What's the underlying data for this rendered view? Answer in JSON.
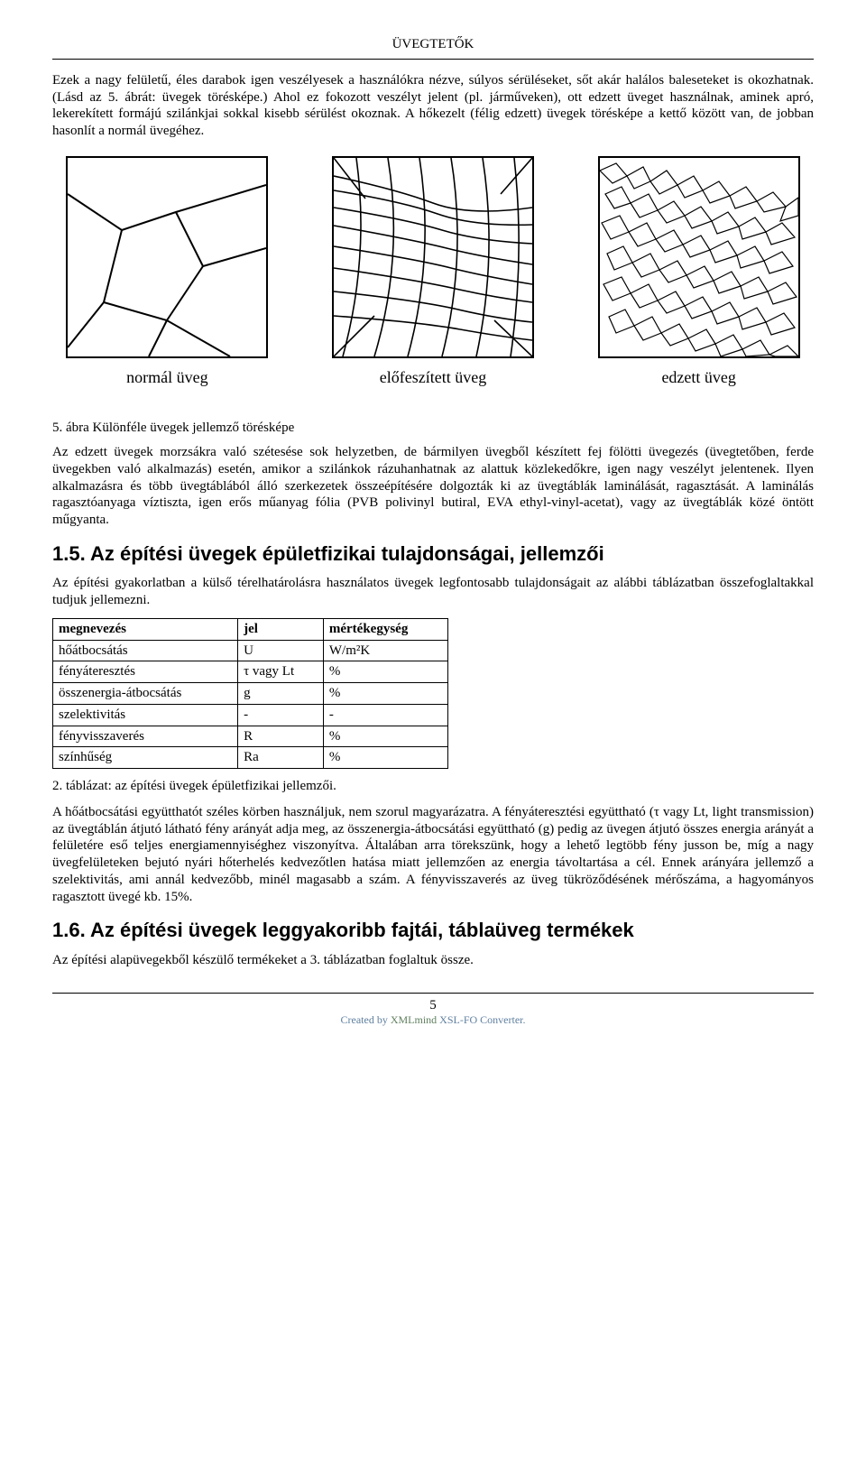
{
  "header": {
    "title": "ÜVEGTETŐK"
  },
  "p1": "Ezek a nagy felületű, éles darabok igen veszélyesek a használókra nézve, súlyos sérüléseket, sőt akár halálos baleseteket is okozhatnak. (Lásd az 5. ábrát: üvegek törésképe.) Ahol ez fokozott veszélyt jelent (pl. járműveken), ott edzett üveget használnak, aminek apró, lekerekített formájú szilánkjai sokkal kisebb sérülést okoznak. A hőkezelt (félig edzett) üvegek törésképe a kettő között van, de jobban hasonlít a normál üvegéhez.",
  "figures": {
    "labels": [
      "normál üveg",
      "előfeszített üveg",
      "edzett üveg"
    ],
    "box_size": 220,
    "stroke": "#000000",
    "bg": "#ffffff"
  },
  "caption": "5. ábra Különféle üvegek jellemző törésképe",
  "p2": "Az edzett üvegek morzsákra való szétesése sok helyzetben, de bármilyen üvegből készített fej fölötti üvegezés (üvegtetőben, ferde üvegekben való alkalmazás) esetén, amikor a szilánkok rázuhanhatnak az alattuk közlekedőkre, igen nagy veszélyt jelentenek. Ilyen alkalmazásra és több üvegtáblából álló szerkezetek összeépítésére dolgozták ki az üvegtáblák laminálását, ragasztását. A laminálás ragasztóanyaga víztiszta, igen erős műanyag fólia (PVB polivinyl butiral, EVA ethyl-vinyl-acetat), vagy az üvegtáblák közé öntött műgyanta.",
  "h15": "1.5. Az építési üvegek épületfizikai tulajdonságai, jellemzői",
  "p3": "Az építési gyakorlatban a külső térelhatárolásra használatos üvegek legfontosabb tulajdonságait az alábbi táblázatban összefoglaltakkal tudjuk jellemezni.",
  "table": {
    "columns": [
      "megnevezés",
      "jel",
      "mértékegység"
    ],
    "rows": [
      [
        "hőátbocsátás",
        "U",
        "W/m²K"
      ],
      [
        "fényáteresztés",
        "τ vagy Lt",
        "%"
      ],
      [
        "összenergia-átbocsátás",
        "g",
        "%"
      ],
      [
        "szelektivitás",
        "-",
        "-"
      ],
      [
        "fényvisszaverés",
        "R",
        "%"
      ],
      [
        "színhűség",
        "Ra",
        "%"
      ]
    ]
  },
  "table_caption": "2. táblázat: az építési üvegek épületfizikai jellemzői.",
  "p4": "A hőátbocsátási együtthatót széles körben használjuk, nem szorul magyarázatra. A fényáteresztési együttható (τ vagy Lt, light transmission) az üvegtáblán átjutó látható fény arányát adja meg, az összenergia-átbocsátási együttható (g) pedig az üvegen átjutó összes energia arányát a felületére eső teljes energiamennyiséghez viszonyítva. Általában arra törekszünk, hogy a lehető legtöbb fény jusson be, míg a nagy üvegfelületeken bejutó nyári hőterhelés kedvezőtlen hatása miatt jellemzően az energia távoltartása a cél. Ennek arányára jellemző a szelektivitás, ami annál kedvezőbb, minél magasabb a szám. A fényvisszaverés az üveg tükröződésének mérőszáma, a hagyományos ragasztott üvegé kb. 15%.",
  "h16": "1.6. Az építési üvegek leggyakoribb fajtái, táblaüveg termékek",
  "p5": "Az építési alapüvegekből készülő termékeket a 3. táblázatban foglaltuk össze.",
  "footer": {
    "page": "5",
    "credit_pre": "Created by ",
    "credit_mid": "XMLmind",
    "credit_post": " XSL-FO Converter."
  }
}
